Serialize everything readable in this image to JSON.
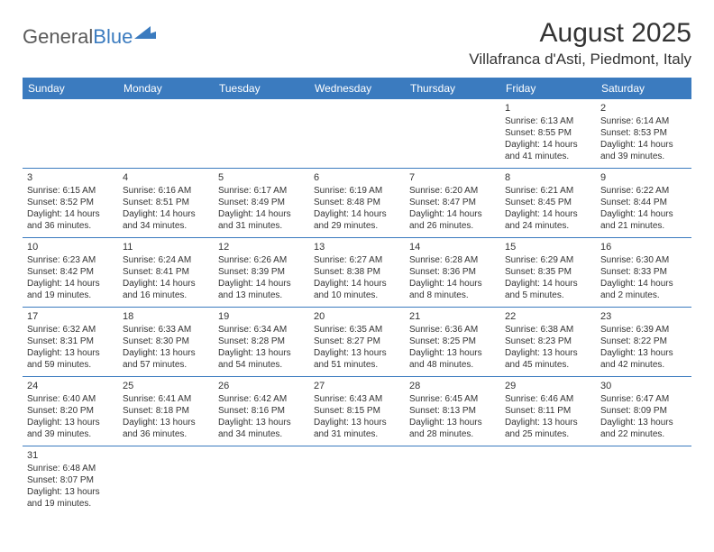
{
  "logo": {
    "text1": "General",
    "text2": "Blue"
  },
  "title": "August 2025",
  "subtitle": "Villafranca d'Asti, Piedmont, Italy",
  "colors": {
    "header_bg": "#3b7bbf",
    "header_text": "#ffffff",
    "border": "#3b7bbf",
    "text": "#333333",
    "logo_gray": "#5a5a5a",
    "logo_blue": "#3b7bbf",
    "background": "#ffffff"
  },
  "day_headers": [
    "Sunday",
    "Monday",
    "Tuesday",
    "Wednesday",
    "Thursday",
    "Friday",
    "Saturday"
  ],
  "weeks": [
    [
      {
        "empty": true
      },
      {
        "empty": true
      },
      {
        "empty": true
      },
      {
        "empty": true
      },
      {
        "empty": true
      },
      {
        "day": "1",
        "sunrise": "Sunrise: 6:13 AM",
        "sunset": "Sunset: 8:55 PM",
        "daylight1": "Daylight: 14 hours",
        "daylight2": "and 41 minutes."
      },
      {
        "day": "2",
        "sunrise": "Sunrise: 6:14 AM",
        "sunset": "Sunset: 8:53 PM",
        "daylight1": "Daylight: 14 hours",
        "daylight2": "and 39 minutes."
      }
    ],
    [
      {
        "day": "3",
        "sunrise": "Sunrise: 6:15 AM",
        "sunset": "Sunset: 8:52 PM",
        "daylight1": "Daylight: 14 hours",
        "daylight2": "and 36 minutes."
      },
      {
        "day": "4",
        "sunrise": "Sunrise: 6:16 AM",
        "sunset": "Sunset: 8:51 PM",
        "daylight1": "Daylight: 14 hours",
        "daylight2": "and 34 minutes."
      },
      {
        "day": "5",
        "sunrise": "Sunrise: 6:17 AM",
        "sunset": "Sunset: 8:49 PM",
        "daylight1": "Daylight: 14 hours",
        "daylight2": "and 31 minutes."
      },
      {
        "day": "6",
        "sunrise": "Sunrise: 6:19 AM",
        "sunset": "Sunset: 8:48 PM",
        "daylight1": "Daylight: 14 hours",
        "daylight2": "and 29 minutes."
      },
      {
        "day": "7",
        "sunrise": "Sunrise: 6:20 AM",
        "sunset": "Sunset: 8:47 PM",
        "daylight1": "Daylight: 14 hours",
        "daylight2": "and 26 minutes."
      },
      {
        "day": "8",
        "sunrise": "Sunrise: 6:21 AM",
        "sunset": "Sunset: 8:45 PM",
        "daylight1": "Daylight: 14 hours",
        "daylight2": "and 24 minutes."
      },
      {
        "day": "9",
        "sunrise": "Sunrise: 6:22 AM",
        "sunset": "Sunset: 8:44 PM",
        "daylight1": "Daylight: 14 hours",
        "daylight2": "and 21 minutes."
      }
    ],
    [
      {
        "day": "10",
        "sunrise": "Sunrise: 6:23 AM",
        "sunset": "Sunset: 8:42 PM",
        "daylight1": "Daylight: 14 hours",
        "daylight2": "and 19 minutes."
      },
      {
        "day": "11",
        "sunrise": "Sunrise: 6:24 AM",
        "sunset": "Sunset: 8:41 PM",
        "daylight1": "Daylight: 14 hours",
        "daylight2": "and 16 minutes."
      },
      {
        "day": "12",
        "sunrise": "Sunrise: 6:26 AM",
        "sunset": "Sunset: 8:39 PM",
        "daylight1": "Daylight: 14 hours",
        "daylight2": "and 13 minutes."
      },
      {
        "day": "13",
        "sunrise": "Sunrise: 6:27 AM",
        "sunset": "Sunset: 8:38 PM",
        "daylight1": "Daylight: 14 hours",
        "daylight2": "and 10 minutes."
      },
      {
        "day": "14",
        "sunrise": "Sunrise: 6:28 AM",
        "sunset": "Sunset: 8:36 PM",
        "daylight1": "Daylight: 14 hours",
        "daylight2": "and 8 minutes."
      },
      {
        "day": "15",
        "sunrise": "Sunrise: 6:29 AM",
        "sunset": "Sunset: 8:35 PM",
        "daylight1": "Daylight: 14 hours",
        "daylight2": "and 5 minutes."
      },
      {
        "day": "16",
        "sunrise": "Sunrise: 6:30 AM",
        "sunset": "Sunset: 8:33 PM",
        "daylight1": "Daylight: 14 hours",
        "daylight2": "and 2 minutes."
      }
    ],
    [
      {
        "day": "17",
        "sunrise": "Sunrise: 6:32 AM",
        "sunset": "Sunset: 8:31 PM",
        "daylight1": "Daylight: 13 hours",
        "daylight2": "and 59 minutes."
      },
      {
        "day": "18",
        "sunrise": "Sunrise: 6:33 AM",
        "sunset": "Sunset: 8:30 PM",
        "daylight1": "Daylight: 13 hours",
        "daylight2": "and 57 minutes."
      },
      {
        "day": "19",
        "sunrise": "Sunrise: 6:34 AM",
        "sunset": "Sunset: 8:28 PM",
        "daylight1": "Daylight: 13 hours",
        "daylight2": "and 54 minutes."
      },
      {
        "day": "20",
        "sunrise": "Sunrise: 6:35 AM",
        "sunset": "Sunset: 8:27 PM",
        "daylight1": "Daylight: 13 hours",
        "daylight2": "and 51 minutes."
      },
      {
        "day": "21",
        "sunrise": "Sunrise: 6:36 AM",
        "sunset": "Sunset: 8:25 PM",
        "daylight1": "Daylight: 13 hours",
        "daylight2": "and 48 minutes."
      },
      {
        "day": "22",
        "sunrise": "Sunrise: 6:38 AM",
        "sunset": "Sunset: 8:23 PM",
        "daylight1": "Daylight: 13 hours",
        "daylight2": "and 45 minutes."
      },
      {
        "day": "23",
        "sunrise": "Sunrise: 6:39 AM",
        "sunset": "Sunset: 8:22 PM",
        "daylight1": "Daylight: 13 hours",
        "daylight2": "and 42 minutes."
      }
    ],
    [
      {
        "day": "24",
        "sunrise": "Sunrise: 6:40 AM",
        "sunset": "Sunset: 8:20 PM",
        "daylight1": "Daylight: 13 hours",
        "daylight2": "and 39 minutes."
      },
      {
        "day": "25",
        "sunrise": "Sunrise: 6:41 AM",
        "sunset": "Sunset: 8:18 PM",
        "daylight1": "Daylight: 13 hours",
        "daylight2": "and 36 minutes."
      },
      {
        "day": "26",
        "sunrise": "Sunrise: 6:42 AM",
        "sunset": "Sunset: 8:16 PM",
        "daylight1": "Daylight: 13 hours",
        "daylight2": "and 34 minutes."
      },
      {
        "day": "27",
        "sunrise": "Sunrise: 6:43 AM",
        "sunset": "Sunset: 8:15 PM",
        "daylight1": "Daylight: 13 hours",
        "daylight2": "and 31 minutes."
      },
      {
        "day": "28",
        "sunrise": "Sunrise: 6:45 AM",
        "sunset": "Sunset: 8:13 PM",
        "daylight1": "Daylight: 13 hours",
        "daylight2": "and 28 minutes."
      },
      {
        "day": "29",
        "sunrise": "Sunrise: 6:46 AM",
        "sunset": "Sunset: 8:11 PM",
        "daylight1": "Daylight: 13 hours",
        "daylight2": "and 25 minutes."
      },
      {
        "day": "30",
        "sunrise": "Sunrise: 6:47 AM",
        "sunset": "Sunset: 8:09 PM",
        "daylight1": "Daylight: 13 hours",
        "daylight2": "and 22 minutes."
      }
    ],
    [
      {
        "day": "31",
        "sunrise": "Sunrise: 6:48 AM",
        "sunset": "Sunset: 8:07 PM",
        "daylight1": "Daylight: 13 hours",
        "daylight2": "and 19 minutes."
      },
      {
        "empty": true
      },
      {
        "empty": true
      },
      {
        "empty": true
      },
      {
        "empty": true
      },
      {
        "empty": true
      },
      {
        "empty": true
      }
    ]
  ]
}
